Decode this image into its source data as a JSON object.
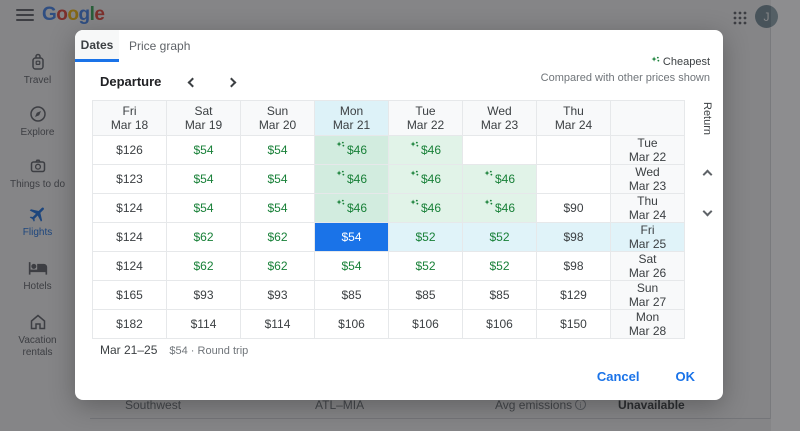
{
  "topbar": {
    "logo": {
      "letters": [
        {
          "ch": "G",
          "color": "#4285F4"
        },
        {
          "ch": "o",
          "color": "#EA4335"
        },
        {
          "ch": "o",
          "color": "#FBBC05"
        },
        {
          "ch": "g",
          "color": "#4285F4"
        },
        {
          "ch": "l",
          "color": "#34A853"
        },
        {
          "ch": "e",
          "color": "#EA4335"
        }
      ]
    },
    "avatar_initial": "J"
  },
  "sidebar": {
    "items": [
      {
        "label": "Travel",
        "icon": "backpack-icon",
        "active": false
      },
      {
        "label": "Explore",
        "icon": "explore-icon",
        "active": false
      },
      {
        "label": "Things to do",
        "icon": "things-to-do-icon",
        "active": false
      },
      {
        "label": "Flights",
        "icon": "flights-icon",
        "active": true
      },
      {
        "label": "Hotels",
        "icon": "hotels-icon",
        "active": false
      },
      {
        "label": "Vacation rentals",
        "icon": "vacation-rentals-icon",
        "active": false
      }
    ]
  },
  "background_page": {
    "flight_row": {
      "airline": "Southwest",
      "route": "ATL–MIA",
      "emissions": "Avg emissions",
      "availability": "Unavailable"
    }
  },
  "dialog": {
    "tabs": [
      {
        "label": "Dates",
        "active": true
      },
      {
        "label": "Price graph",
        "active": false
      }
    ],
    "departure_label": "Departure",
    "legend": {
      "cheapest_label": "Cheapest",
      "compared_label": "Compared with other prices shown"
    },
    "return_axis_label": "Return",
    "grid": {
      "departure_columns": [
        {
          "day": "Fri",
          "date": "Mar 18",
          "highlighted": false
        },
        {
          "day": "Sat",
          "date": "Mar 19",
          "highlighted": false
        },
        {
          "day": "Sun",
          "date": "Mar 20",
          "highlighted": false
        },
        {
          "day": "Mon",
          "date": "Mar 21",
          "highlighted": true
        },
        {
          "day": "Tue",
          "date": "Mar 22",
          "highlighted": false
        },
        {
          "day": "Wed",
          "date": "Mar 23",
          "highlighted": false
        },
        {
          "day": "Thu",
          "date": "Mar 24",
          "highlighted": false
        }
      ],
      "rows": [
        {
          "return_day": "Tue",
          "return_date": "Mar 22",
          "highlighted": false,
          "cells": [
            {
              "price": "$126",
              "style": "plain"
            },
            {
              "price": "$54",
              "style": "green"
            },
            {
              "price": "$54",
              "style": "green"
            },
            {
              "price": "$46",
              "style": "cheap-dep"
            },
            {
              "price": "$46",
              "style": "cheap"
            },
            {
              "price": "",
              "style": "empty"
            },
            {
              "price": "",
              "style": "empty"
            }
          ]
        },
        {
          "return_day": "Wed",
          "return_date": "Mar 23",
          "highlighted": false,
          "cells": [
            {
              "price": "$123",
              "style": "plain"
            },
            {
              "price": "$54",
              "style": "green"
            },
            {
              "price": "$54",
              "style": "green"
            },
            {
              "price": "$46",
              "style": "cheap-dep"
            },
            {
              "price": "$46",
              "style": "cheap"
            },
            {
              "price": "$46",
              "style": "cheap"
            },
            {
              "price": "",
              "style": "empty"
            }
          ]
        },
        {
          "return_day": "Thu",
          "return_date": "Mar 24",
          "highlighted": false,
          "cells": [
            {
              "price": "$124",
              "style": "plain"
            },
            {
              "price": "$54",
              "style": "green"
            },
            {
              "price": "$54",
              "style": "green"
            },
            {
              "price": "$46",
              "style": "cheap-dep"
            },
            {
              "price": "$46",
              "style": "cheap"
            },
            {
              "price": "$46",
              "style": "cheap"
            },
            {
              "price": "$90",
              "style": "plain"
            }
          ]
        },
        {
          "return_day": "Fri",
          "return_date": "Mar 25",
          "highlighted": true,
          "cells": [
            {
              "price": "$124",
              "style": "plain"
            },
            {
              "price": "$62",
              "style": "green"
            },
            {
              "price": "$62",
              "style": "green"
            },
            {
              "price": "$54",
              "style": "selected"
            },
            {
              "price": "$52",
              "style": "green-hl"
            },
            {
              "price": "$52",
              "style": "green-hl"
            },
            {
              "price": "$98",
              "style": "plain-hl"
            }
          ]
        },
        {
          "return_day": "Sat",
          "return_date": "Mar 26",
          "highlighted": false,
          "cells": [
            {
              "price": "$124",
              "style": "plain"
            },
            {
              "price": "$62",
              "style": "green"
            },
            {
              "price": "$62",
              "style": "green"
            },
            {
              "price": "$54",
              "style": "green"
            },
            {
              "price": "$52",
              "style": "green"
            },
            {
              "price": "$52",
              "style": "green"
            },
            {
              "price": "$98",
              "style": "plain"
            }
          ]
        },
        {
          "return_day": "Sun",
          "return_date": "Mar 27",
          "highlighted": false,
          "cells": [
            {
              "price": "$165",
              "style": "plain"
            },
            {
              "price": "$93",
              "style": "plain"
            },
            {
              "price": "$93",
              "style": "plain"
            },
            {
              "price": "$85",
              "style": "plain"
            },
            {
              "price": "$85",
              "style": "plain"
            },
            {
              "price": "$85",
              "style": "plain"
            },
            {
              "price": "$129",
              "style": "plain"
            }
          ]
        },
        {
          "return_day": "Mon",
          "return_date": "Mar 28",
          "highlighted": false,
          "cells": [
            {
              "price": "$182",
              "style": "plain"
            },
            {
              "price": "$114",
              "style": "plain"
            },
            {
              "price": "$114",
              "style": "plain"
            },
            {
              "price": "$106",
              "style": "plain"
            },
            {
              "price": "$106",
              "style": "plain"
            },
            {
              "price": "$106",
              "style": "plain"
            },
            {
              "price": "$150",
              "style": "plain"
            }
          ]
        }
      ]
    },
    "footer": {
      "date_range": "Mar 21–25",
      "price_summary": "$54 · Round trip",
      "cancel_label": "Cancel",
      "ok_label": "OK"
    }
  },
  "colors": {
    "accent_blue": "#1a73e8",
    "price_green": "#188038",
    "cheap_bg": "#e1f3e8",
    "cheap_departure_bg": "#d2ecdf",
    "highlight_blue_bg": "#e0f3f9",
    "header_bg": "#f8f9fa"
  }
}
